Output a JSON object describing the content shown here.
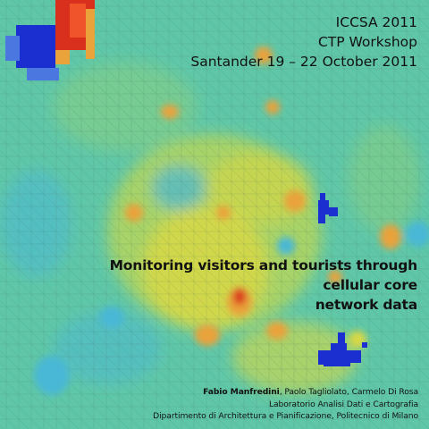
{
  "conference": {
    "line1": "ICCSA 2011",
    "line2": "CTP Workshop",
    "line3": "Santander 19 – 22 October 2011"
  },
  "title": {
    "line1": "Monitoring visitors and tourists through cellular core",
    "line2": "network data"
  },
  "credits": {
    "lead_author": "Fabio Manfredini",
    "coauthors": ", Paolo Tagliolato, Carmelo Di Rosa",
    "lab": "Laboratorio Analisi Dati e Cartografia",
    "department": "Dipartimento di Architettura e Pianificazione, Politecnico di Milano"
  },
  "map_colors": {
    "base": "#5fc7a8",
    "cyan": "#4ab8d6",
    "yellow": "#d8d845",
    "orange": "#eaa23a",
    "red": "#d8301c",
    "blue": "#1b2fd0"
  }
}
